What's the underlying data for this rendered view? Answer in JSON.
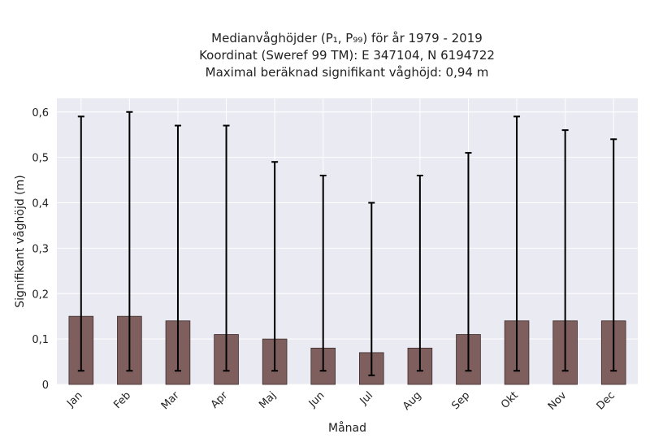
{
  "chart_data": {
    "type": "bar",
    "title_lines": [
      "Medianvåghöjder (P₁, P₉₉) för år 1979 - 2019",
      "Koordinat (Sweref 99 TM): E 347104, N 6194722",
      "Maximal beräknad signifikant våghöjd: 0,94 m"
    ],
    "xlabel": "Månad",
    "ylabel": "Signifikant våghöjd (m)",
    "categories": [
      "Jan",
      "Feb",
      "Mar",
      "Apr",
      "Maj",
      "Jun",
      "Jul",
      "Aug",
      "Sep",
      "Okt",
      "Nov",
      "Dec"
    ],
    "values": [
      0.15,
      0.15,
      0.14,
      0.11,
      0.1,
      0.08,
      0.07,
      0.08,
      0.11,
      0.14,
      0.14,
      0.14
    ],
    "p1": [
      0.03,
      0.03,
      0.03,
      0.03,
      0.03,
      0.03,
      0.02,
      0.03,
      0.03,
      0.03,
      0.03,
      0.03
    ],
    "p99": [
      0.59,
      0.6,
      0.57,
      0.57,
      0.49,
      0.46,
      0.4,
      0.46,
      0.51,
      0.59,
      0.56,
      0.54
    ],
    "ylim": [
      0,
      0.63
    ],
    "yticks": [
      0,
      0.1,
      0.2,
      0.3,
      0.4,
      0.5,
      0.6
    ],
    "ytick_labels": [
      "0",
      "0,1",
      "0,2",
      "0,3",
      "0,4",
      "0,5",
      "0,6"
    ],
    "grid": true,
    "colors": {
      "bar": "#7f5e5e",
      "bar_edge": "#3c2c2c",
      "error": "#000000",
      "plot_bg": "#eaeaf2",
      "grid": "#ffffff"
    }
  }
}
